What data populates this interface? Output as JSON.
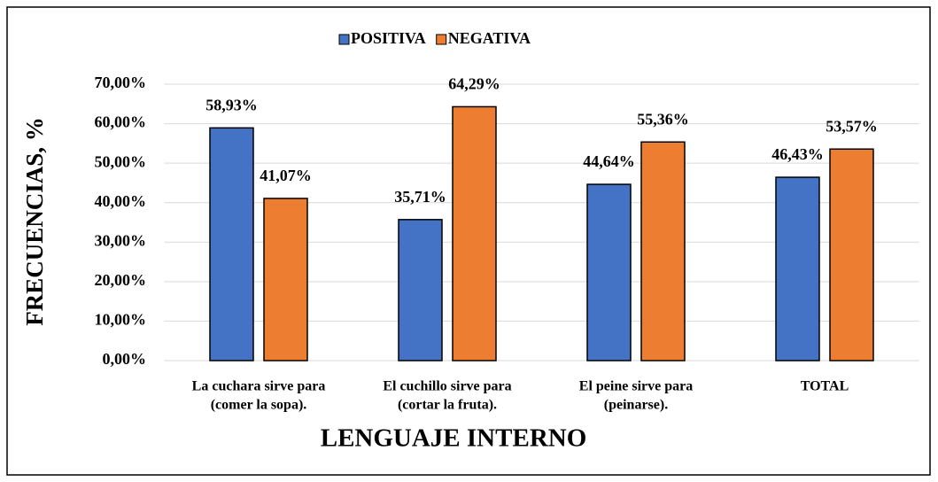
{
  "chart_data": {
    "type": "bar",
    "x_label": "LENGUAJE INTERNO",
    "y_label": "FRECUENCIAS, %",
    "categories": [
      [
        "La cuchara sirve para",
        "(comer la sopa)."
      ],
      [
        "El cuchillo sirve para",
        "(cortar la fruta)."
      ],
      [
        "El peine sirve para",
        "(peinarse)."
      ],
      [
        "TOTAL"
      ]
    ],
    "series": [
      {
        "name": "POSITIVA",
        "color": "#4472c4",
        "values": [
          58.93,
          35.71,
          44.64,
          46.43
        ],
        "value_labels": [
          "58,93%",
          "35,71%",
          "44,64%",
          "46,43%"
        ]
      },
      {
        "name": "NEGATIVA",
        "color": "#ed7d31",
        "values": [
          41.07,
          64.29,
          55.36,
          53.57
        ],
        "value_labels": [
          "41,07%",
          "64,29%",
          "55,36%",
          "53,57%"
        ]
      }
    ],
    "ylim": [
      0,
      70
    ],
    "yticks": [
      {
        "value": 0,
        "label": "0,00%"
      },
      {
        "value": 10,
        "label": "10,00%"
      },
      {
        "value": 20,
        "label": "20,00%"
      },
      {
        "value": 30,
        "label": "30,00%"
      },
      {
        "value": 40,
        "label": "40,00%"
      },
      {
        "value": 50,
        "label": "50,00%"
      },
      {
        "value": 60,
        "label": "60,00%"
      },
      {
        "value": 70,
        "label": "70,00%"
      }
    ],
    "grid": true,
    "legend": "top"
  }
}
